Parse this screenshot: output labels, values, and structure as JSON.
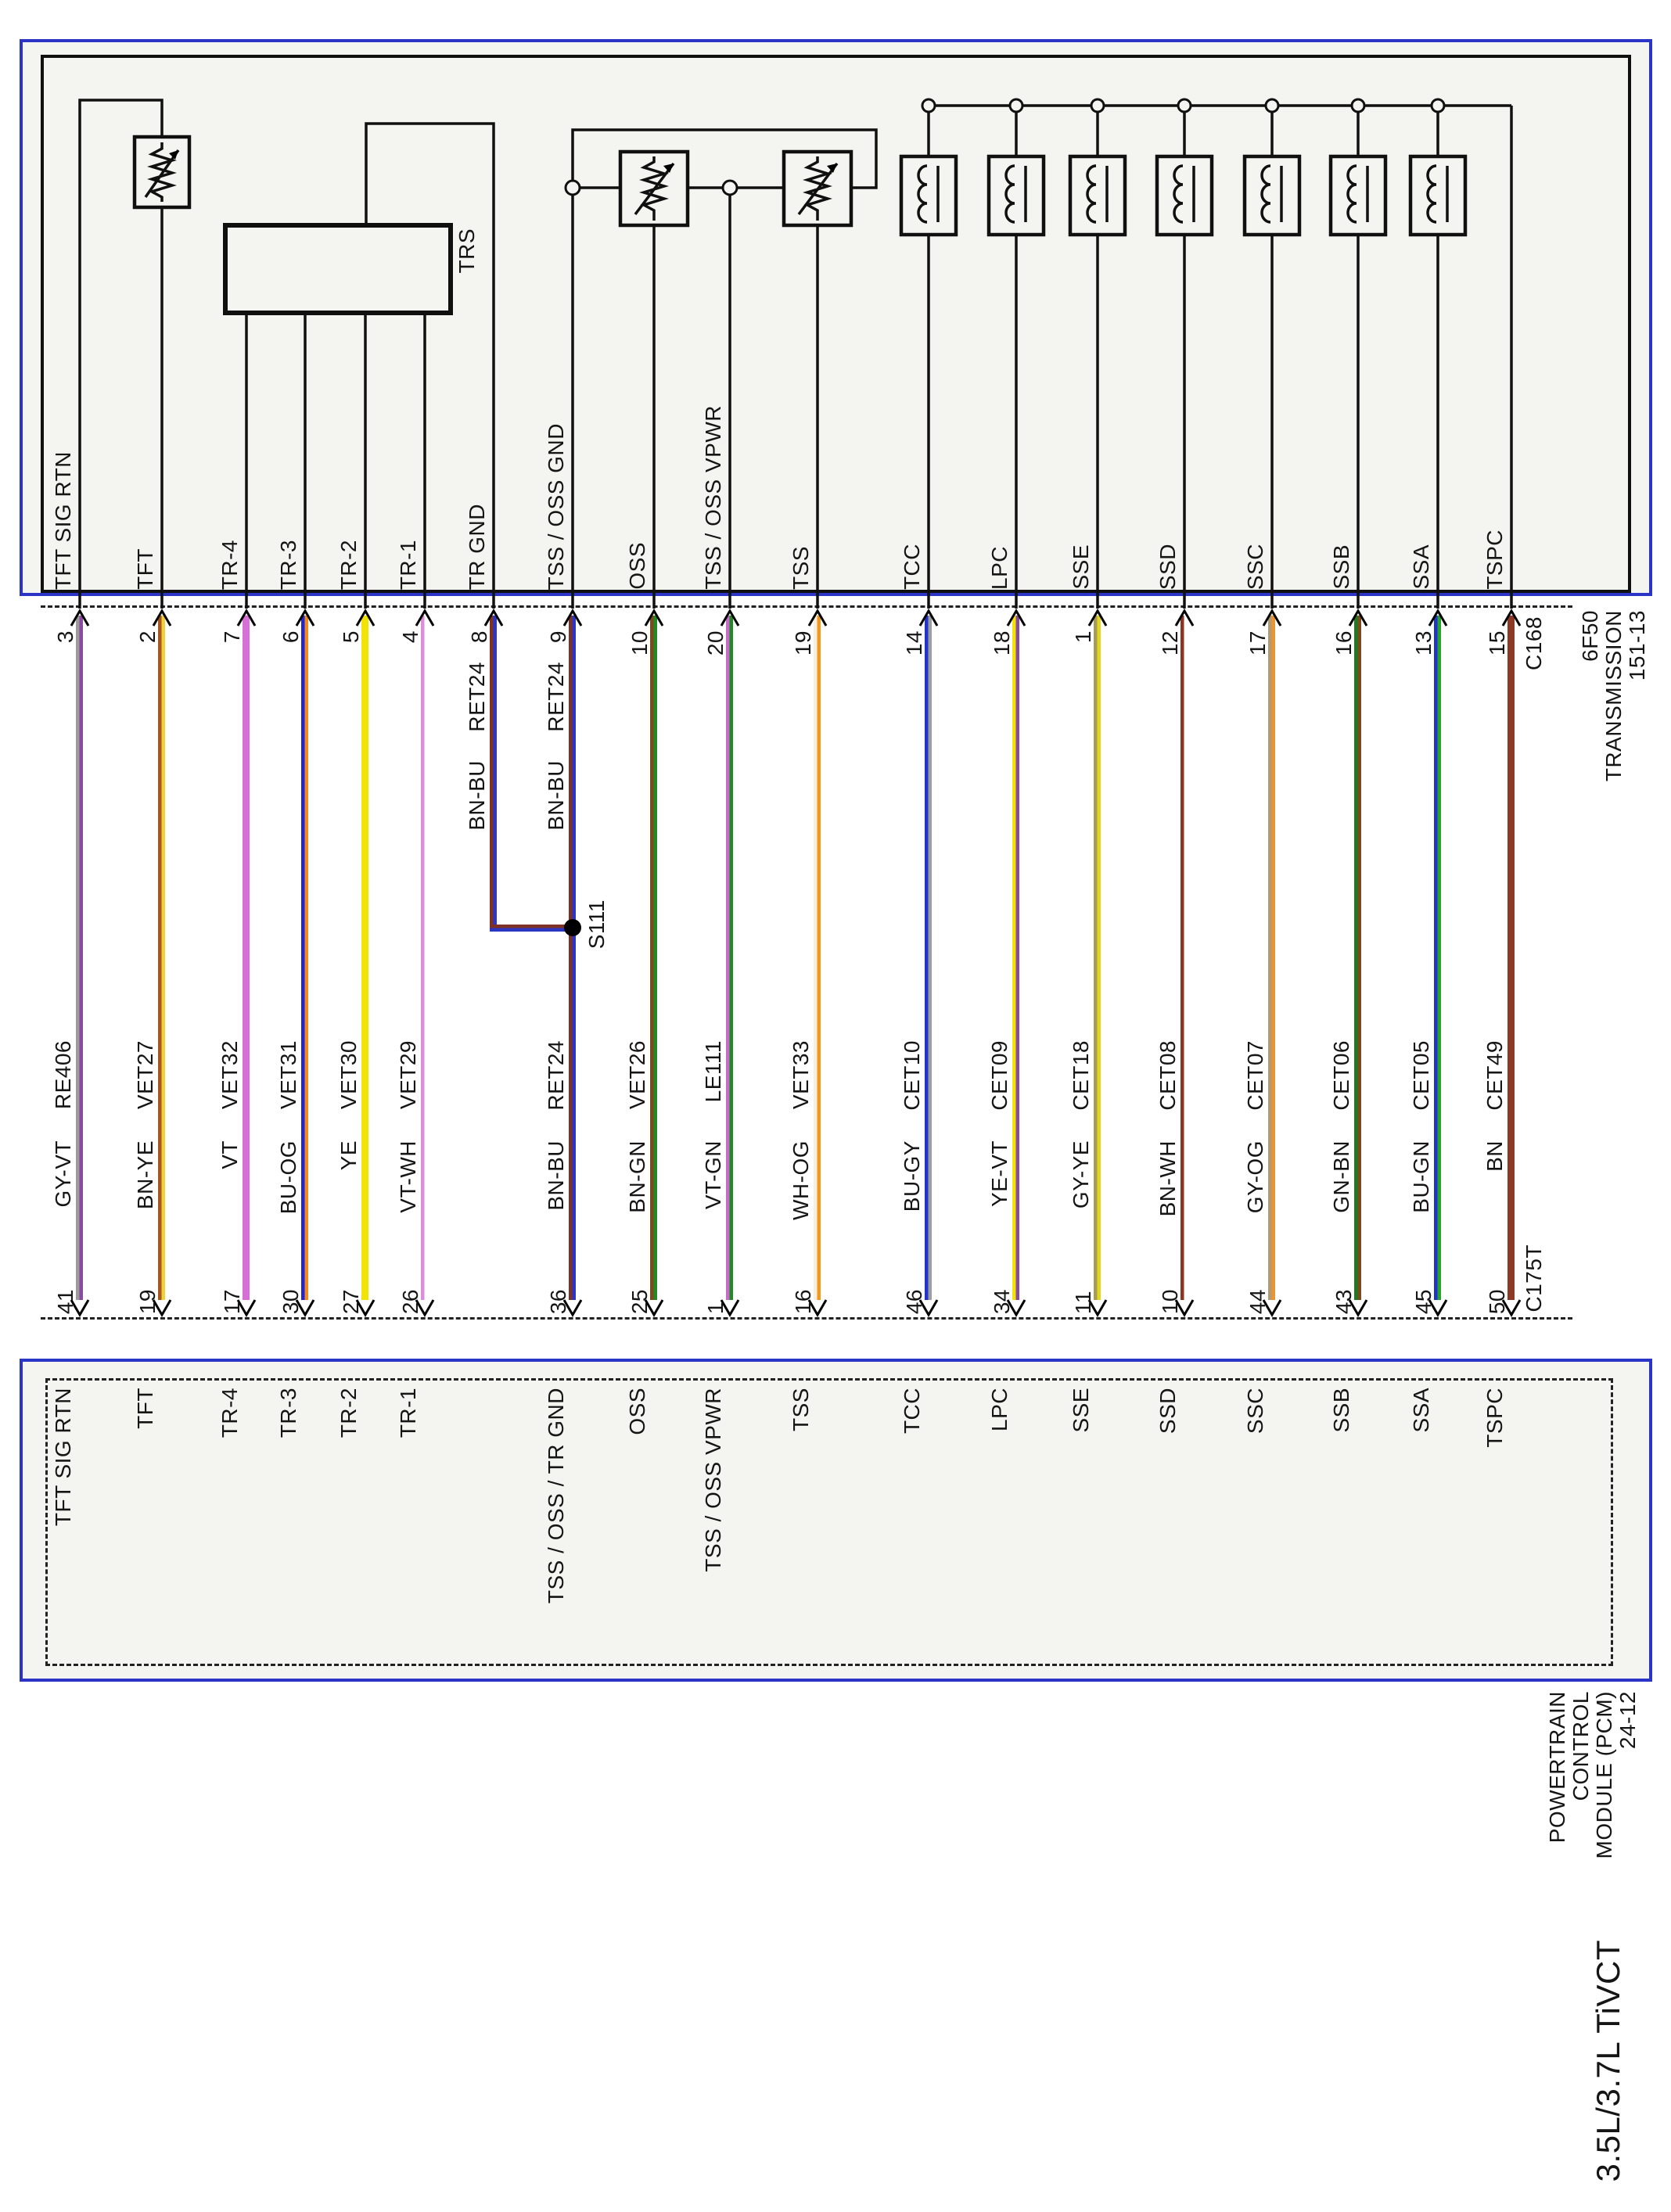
{
  "title": "3.5L/3.7L TiVCT",
  "transmission": {
    "label_lines": [
      "6F50",
      "TRANSMISSION",
      "151-13"
    ],
    "connector": "C168",
    "trs_label": "TRS"
  },
  "pcm": {
    "label_lines": [
      "POWERTRAIN",
      "CONTROL",
      "MODULE (PCM)",
      "24-12"
    ],
    "connector": "C175T"
  },
  "splice": "S111",
  "accent_color": "#2a35c8",
  "wires": [
    {
      "name": "TFT SIG RTN",
      "top_pin": "3",
      "circuit": "RE406",
      "color_code": "GY-VT",
      "main": "#9b9b9b",
      "stripe": "#8a4a9f",
      "band": "mid",
      "bottom_pin": "41",
      "bottom_label": "TFT SIG RTN",
      "to_pcm": true
    },
    {
      "name": "TFT",
      "top_pin": "2",
      "circuit": "VET27",
      "color_code": "BN-YE",
      "main": "#a5571c",
      "stripe": "#eed23c",
      "band": "mid",
      "bottom_pin": "19",
      "bottom_label": "TFT",
      "to_pcm": true
    },
    {
      "name": "TR-4",
      "top_pin": "7",
      "circuit": "VET32",
      "color_code": "VT",
      "main": "#d66fd6",
      "stripe": "#d66fd6",
      "band": "mid",
      "bottom_pin": "17",
      "bottom_label": "TR-4",
      "to_pcm": true
    },
    {
      "name": "TR-3",
      "top_pin": "6",
      "circuit": "VET31",
      "color_code": "BU-OG",
      "main": "#2326cf",
      "stripe": "#f28b1d",
      "band": "mid",
      "bottom_pin": "30",
      "bottom_label": "TR-3",
      "to_pcm": true
    },
    {
      "name": "TR-2",
      "top_pin": "5",
      "circuit": "VET30",
      "color_code": "YE",
      "main": "#f2e307",
      "stripe": "#f2e307",
      "band": "mid",
      "bottom_pin": "27",
      "bottom_label": "TR-2",
      "to_pcm": true
    },
    {
      "name": "TR-1",
      "top_pin": "4",
      "circuit": "VET29",
      "color_code": "VT-WH",
      "main": "#db8edb",
      "stripe": "#ffffff",
      "band": "mid",
      "bottom_pin": "26",
      "bottom_label": "TR-1",
      "to_pcm": true
    },
    {
      "name": "TR GND",
      "top_pin": "8",
      "circuit": "RET24",
      "color_code": "BN-BU",
      "main": "#7d3227",
      "stripe": "#2c36c4",
      "band": "top",
      "bottom_pin": "",
      "bottom_label": "",
      "to_pcm": false
    },
    {
      "name": "TSS / OSS GND",
      "top_pin": "9",
      "circuit": "RET24",
      "color_code": "BN-BU",
      "main": "#7d3227",
      "stripe": "#2c36c4",
      "band": "both",
      "bottom_pin": "36",
      "bottom_label": "TSS / OSS / TR GND",
      "to_pcm": true
    },
    {
      "name": "OSS",
      "top_pin": "10",
      "circuit": "VET26",
      "color_code": "BN-GN",
      "main": "#7d4a1d",
      "stripe": "#1f8a23",
      "band": "mid",
      "bottom_pin": "25",
      "bottom_label": "OSS",
      "to_pcm": true
    },
    {
      "name": "TSS / OSS VPWR",
      "top_pin": "20",
      "circuit": "LE111",
      "color_code": "VT-GN",
      "main": "#c66cc6",
      "stripe": "#1f8a23",
      "band": "mid",
      "bottom_pin": "1",
      "bottom_label": "TSS / OSS VPWR",
      "to_pcm": true
    },
    {
      "name": "TSS",
      "top_pin": "19",
      "circuit": "VET33",
      "color_code": "WH-OG",
      "main": "#f6efe2",
      "stripe": "#f2981d",
      "band": "mid",
      "bottom_pin": "16",
      "bottom_label": "TSS",
      "to_pcm": true
    },
    {
      "name": "TCC",
      "top_pin": "14",
      "circuit": "CET10",
      "color_code": "BU-GY",
      "main": "#2233cc",
      "stripe": "#9d9d9d",
      "band": "mid",
      "bottom_pin": "46",
      "bottom_label": "TCC",
      "to_pcm": true
    },
    {
      "name": "LPC",
      "top_pin": "18",
      "circuit": "CET09",
      "color_code": "YE-VT",
      "main": "#f2e307",
      "stripe": "#8a4a9f",
      "band": "mid",
      "bottom_pin": "34",
      "bottom_label": "LPC",
      "to_pcm": true
    },
    {
      "name": "SSE",
      "top_pin": "1",
      "circuit": "CET18",
      "color_code": "GY-YE",
      "main": "#a39d58",
      "stripe": "#e6d51e",
      "band": "mid",
      "bottom_pin": "11",
      "bottom_label": "SSE",
      "to_pcm": true
    },
    {
      "name": "SSD",
      "top_pin": "12",
      "circuit": "CET08",
      "color_code": "BN-WH",
      "main": "#8c3522",
      "stripe": "#ffffff",
      "band": "mid",
      "bottom_pin": "10",
      "bottom_label": "SSD",
      "to_pcm": true
    },
    {
      "name": "SSC",
      "top_pin": "17",
      "circuit": "CET07",
      "color_code": "GY-OG",
      "main": "#b29a72",
      "stripe": "#ec9434",
      "band": "mid",
      "bottom_pin": "44",
      "bottom_label": "SSC",
      "to_pcm": true
    },
    {
      "name": "SSB",
      "top_pin": "16",
      "circuit": "CET06",
      "color_code": "GN-BN",
      "main": "#1d7c1d",
      "stripe": "#7d4a1d",
      "band": "mid",
      "bottom_pin": "43",
      "bottom_label": "SSB",
      "to_pcm": true
    },
    {
      "name": "SSA",
      "top_pin": "13",
      "circuit": "CET05",
      "color_code": "BU-GN",
      "main": "#2233cc",
      "stripe": "#28a428",
      "band": "mid",
      "bottom_pin": "45",
      "bottom_label": "SSA",
      "to_pcm": true
    },
    {
      "name": "TSPC",
      "top_pin": "15",
      "circuit": "CET49",
      "color_code": "BN",
      "main": "#8c3a26",
      "stripe": "#8c3a26",
      "band": "mid",
      "bottom_pin": "50",
      "bottom_label": "TSPC",
      "to_pcm": true
    }
  ]
}
